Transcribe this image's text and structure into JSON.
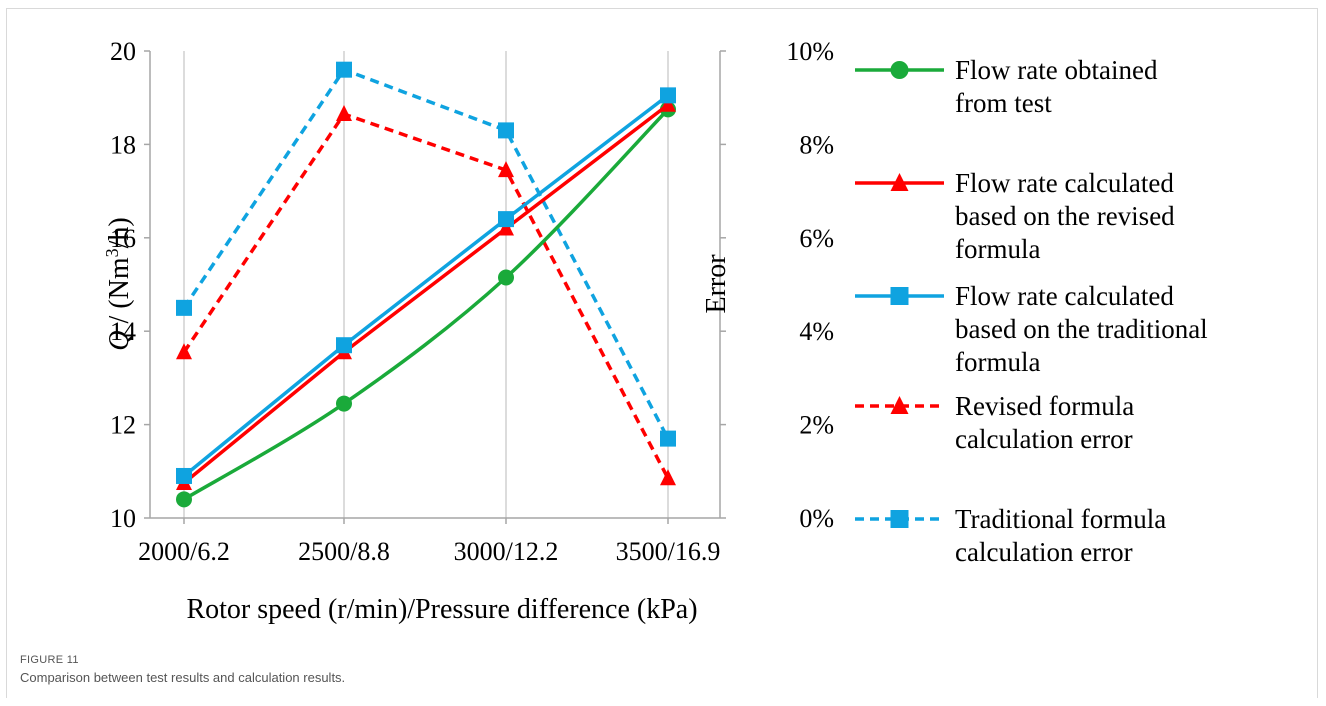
{
  "figure": {
    "label": "FIGURE 11",
    "caption": "Comparison between test results and calculation results."
  },
  "chart_data": {
    "type": "line",
    "categories": [
      "2000/6.2",
      "2500/8.8",
      "3000/12.2",
      "3500/16.9"
    ],
    "xlabel": "Rotor speed (r/min)/Pressure difference  (kPa)",
    "ylabel_left": {
      "italic": "Q",
      "rest": " / (Nm",
      "sup": "3",
      "end": "/h)"
    },
    "ylabel_right": "Error",
    "ylim_left": [
      10,
      20
    ],
    "yticks_left": [
      "10",
      "12",
      "14",
      "16",
      "18",
      "20"
    ],
    "ylim_right": [
      0,
      0.1
    ],
    "yticks_right": [
      "0%",
      "2%",
      "4%",
      "6%",
      "8%",
      "10%"
    ],
    "grid": "vertical",
    "legend_position": "right",
    "series": [
      {
        "name": "Flow rate obtained from test",
        "legend_lines": [
          "Flow rate obtained",
          "from test"
        ],
        "axis": "left",
        "color": "#1aaa3a",
        "marker": "circle",
        "dash": "solid",
        "values": [
          10.4,
          12.45,
          15.15,
          18.75
        ]
      },
      {
        "name": "Flow rate calculated based on the revised formula",
        "legend_lines": [
          "Flow rate calculated",
          "based on the revised",
          "formula"
        ],
        "axis": "left",
        "color": "#ff0000",
        "marker": "triangle",
        "dash": "solid",
        "values": [
          10.75,
          13.55,
          16.2,
          18.85
        ]
      },
      {
        "name": "Flow rate calculated based on the traditional formula",
        "legend_lines": [
          "Flow rate calculated",
          "based on the traditional",
          "formula"
        ],
        "axis": "left",
        "color": "#0fa3e0",
        "marker": "square",
        "dash": "solid",
        "values": [
          10.9,
          13.7,
          16.4,
          19.05
        ]
      },
      {
        "name": "Revised formula calculation error",
        "legend_lines": [
          "Revised formula",
          "calculation error"
        ],
        "axis": "right",
        "color": "#ff0000",
        "marker": "triangle",
        "dash": "dashed",
        "values": [
          0.0355,
          0.0865,
          0.0745,
          0.0085
        ]
      },
      {
        "name": "Traditional formula calculation error",
        "legend_lines": [
          "Traditional formula",
          "calculation error"
        ],
        "axis": "right",
        "color": "#0fa3e0",
        "marker": "square",
        "dash": "dashed",
        "values": [
          0.045,
          0.096,
          0.083,
          0.017
        ]
      }
    ]
  }
}
